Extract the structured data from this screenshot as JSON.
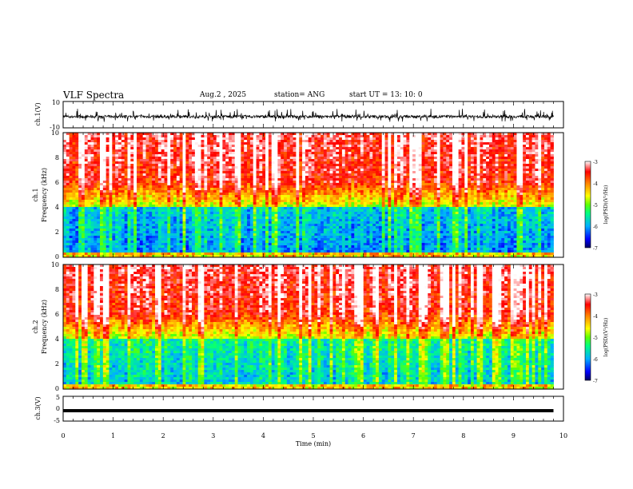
{
  "header": {
    "title": "VLF Spectra",
    "date": "Aug.2 , 2025",
    "station": "station= ANG",
    "start": "start UT = 13: 10: 0"
  },
  "chart_data": [
    {
      "type": "line",
      "name": "ch1-waveform",
      "ylabel": "ch.1(V)",
      "ylim": [
        -10,
        10
      ],
      "ytick_labels": [
        "10",
        "-10"
      ],
      "xlim": [
        0,
        10
      ],
      "description_values": {
        "baseline": -1.5,
        "typical_min": -5,
        "typical_max": 6
      }
    },
    {
      "type": "heatmap",
      "name": "ch1-spectrogram",
      "ylabel": "ch.1",
      "ylabel2": "Frequency (kHz)",
      "ylim": [
        0,
        10
      ],
      "ytick_labels": [
        "0",
        "2",
        "4",
        "6",
        "8",
        "10"
      ],
      "xlim": [
        0,
        9.8
      ],
      "colorbar": {
        "label": "log(PSD)(V²/Hz)",
        "range": [
          -7,
          -3
        ],
        "tick_labels": [
          "-3",
          "-4",
          "-5",
          "-6",
          "-7"
        ]
      }
    },
    {
      "type": "heatmap",
      "name": "ch2-spectrogram",
      "ylabel": "ch.2",
      "ylabel2": "Frequency (kHz)",
      "ylim": [
        0,
        10
      ],
      "ytick_labels": [
        "0",
        "2",
        "4",
        "6",
        "8",
        "10"
      ],
      "xlim": [
        0,
        9.8
      ],
      "colorbar": {
        "label": "log(PSD)(V²/Hz)",
        "range": [
          -7,
          -3
        ],
        "tick_labels": [
          "-3",
          "-4",
          "-5",
          "-6",
          "-7"
        ]
      }
    },
    {
      "type": "line",
      "name": "ch3-waveform",
      "ylabel": "ch.3(V)",
      "ylim": [
        -5,
        5
      ],
      "ytick_labels": [
        "5",
        "0",
        "-5"
      ],
      "xlim": [
        0,
        10
      ],
      "values_constant": -0.8
    }
  ],
  "xaxis": {
    "label": "Time (min)",
    "range": [
      0,
      10
    ],
    "tick_labels": [
      "0",
      "1",
      "2",
      "3",
      "4",
      "5",
      "6",
      "7",
      "8",
      "9",
      "10"
    ]
  },
  "colors": {
    "scale": [
      "#000060",
      "#0000ff",
      "#00a0ff",
      "#00ffff",
      "#00ff00",
      "#c8ff00",
      "#ffff00",
      "#ff8000",
      "#ff0000",
      "#ffffff"
    ]
  }
}
